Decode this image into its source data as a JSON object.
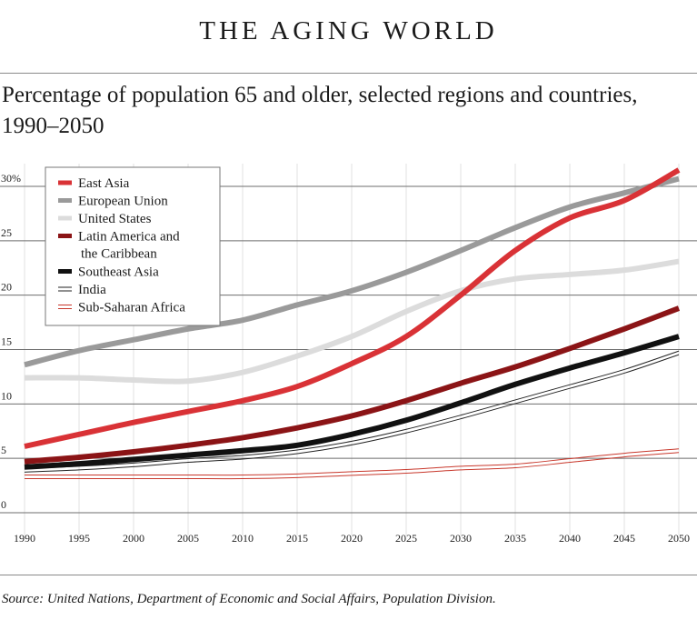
{
  "header": {
    "title": "THE AGING WORLD",
    "subtitle_line1": "Percentage of population 65 and older, selected regions and countries,",
    "subtitle_line2": "1990–2050"
  },
  "footer": {
    "source": "Source: United Nations, Department of Economic and Social Affairs, Population Division."
  },
  "chart_data": {
    "type": "line",
    "title": "THE AGING WORLD",
    "subtitle": "Percentage of population 65 and older, selected regions and countries, 1990–2050",
    "xlabel": "",
    "ylabel": "",
    "x": [
      1990,
      1995,
      2000,
      2005,
      2010,
      2015,
      2020,
      2025,
      2030,
      2035,
      2040,
      2045,
      2050
    ],
    "xlim": [
      1990,
      2050
    ],
    "ylim": [
      0,
      30
    ],
    "x_ticks": [
      "1990",
      "1995",
      "2000",
      "2005",
      "2010",
      "2015",
      "2020",
      "2025",
      "2030",
      "2035",
      "2040",
      "2045",
      "2050"
    ],
    "y_ticks": [
      {
        "value": 0,
        "label": "0"
      },
      {
        "value": 5,
        "label": "5"
      },
      {
        "value": 10,
        "label": "10"
      },
      {
        "value": 15,
        "label": "15"
      },
      {
        "value": 20,
        "label": "20"
      },
      {
        "value": 25,
        "label": "25"
      },
      {
        "value": 30,
        "label": "30%"
      }
    ],
    "grid": true,
    "legend_position": "top-left",
    "series": [
      {
        "name": "East Asia",
        "legend_lines": [
          "East Asia"
        ],
        "color": "#d93236",
        "style": "thick",
        "values": [
          6.1,
          7.2,
          8.3,
          9.3,
          10.3,
          11.6,
          13.7,
          16.2,
          20.0,
          24.1,
          27.1,
          28.7,
          31.5
        ]
      },
      {
        "name": "European Union",
        "legend_lines": [
          "European Union"
        ],
        "color": "#9a9a9a",
        "style": "thick",
        "values": [
          13.6,
          14.9,
          15.9,
          16.9,
          17.7,
          19.1,
          20.4,
          22.1,
          24.1,
          26.2,
          28.1,
          29.4,
          30.7
        ]
      },
      {
        "name": "United States",
        "legend_lines": [
          "United States"
        ],
        "color": "#dcdcdc",
        "style": "thick",
        "values": [
          12.4,
          12.4,
          12.2,
          12.1,
          12.9,
          14.4,
          16.2,
          18.5,
          20.4,
          21.5,
          21.9,
          22.3,
          23.1
        ]
      },
      {
        "name": "Latin America and the Caribbean",
        "legend_lines": [
          "Latin America and",
          "the Caribbean"
        ],
        "color": "#8b1416",
        "style": "thick",
        "values": [
          4.7,
          5.1,
          5.6,
          6.2,
          6.9,
          7.8,
          8.9,
          10.3,
          11.9,
          13.4,
          15.1,
          16.9,
          18.8
        ]
      },
      {
        "name": "Southeast Asia",
        "legend_lines": [
          "Southeast Asia"
        ],
        "color": "#111111",
        "style": "thick",
        "values": [
          4.2,
          4.5,
          4.9,
          5.3,
          5.7,
          6.2,
          7.2,
          8.5,
          10.1,
          11.8,
          13.3,
          14.7,
          16.2
        ]
      },
      {
        "name": "India",
        "legend_lines": [
          "India"
        ],
        "color": "#222222",
        "style": "double",
        "values": [
          3.9,
          4.1,
          4.4,
          4.8,
          5.1,
          5.6,
          6.4,
          7.5,
          8.8,
          10.2,
          11.6,
          13.0,
          14.7
        ]
      },
      {
        "name": "Sub-Saharan Africa",
        "legend_lines": [
          "Sub-Saharan Africa"
        ],
        "color": "#c8382c",
        "style": "double",
        "values": [
          3.3,
          3.3,
          3.3,
          3.3,
          3.3,
          3.4,
          3.6,
          3.8,
          4.1,
          4.3,
          4.8,
          5.3,
          5.7
        ]
      }
    ]
  }
}
